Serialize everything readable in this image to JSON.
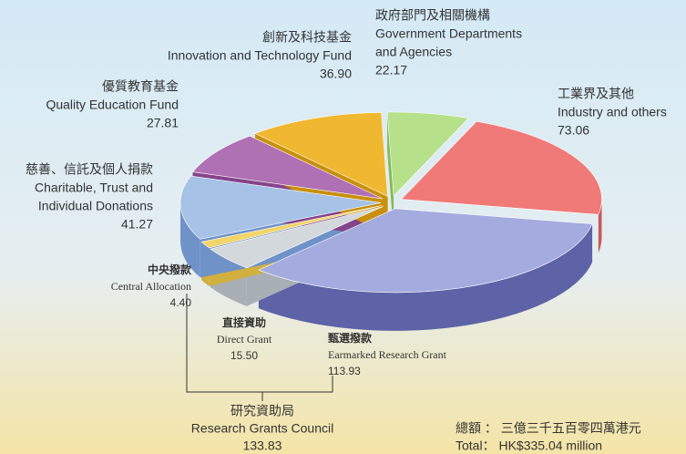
{
  "chart_data": {
    "type": "pie",
    "series": [
      {
        "label_zh": "工業界及其他",
        "label_en": [
          "Industry and others"
        ],
        "color": "#f07a78",
        "side": "#c85a5a"
      },
      {
        "label_zh": "甄選撥款",
        "label_en": [
          "Earmarked Research Grant"
        ],
        "color": "#a4abdf",
        "side": "#5d63a6"
      },
      {
        "label_zh": "直接資助",
        "label_en": [
          "Direct Grant"
        ],
        "color": "#d3d8dc",
        "side": "#a9b0b5"
      },
      {
        "label_zh": "中央撥款",
        "label_en": [
          "Central Allocation"
        ],
        "color": "#f2d56a",
        "side": "#d2b040"
      },
      {
        "label_zh": "慈善、信託及個人捐款",
        "label_en": [
          "Charitable, Trust and",
          "Individual Donations"
        ],
        "color": "#a6c2e6",
        "side": "#6f93c8"
      },
      {
        "label_zh": "優質教育基金",
        "label_en": [
          "Quality Education Fund"
        ],
        "color": "#b070b4",
        "side": "#84448a"
      },
      {
        "label_zh": "創新及科技基金",
        "label_en": [
          "Innovation and Technology Fund"
        ],
        "color": "#f0b830",
        "side": "#c8900c"
      },
      {
        "label_zh": "政府部門及相關機構",
        "label_en": [
          "Government Departments",
          "and Agencies"
        ],
        "color": "#b6e08a",
        "side": "#86b858"
      }
    ],
    "values": [
      73.06,
      113.93,
      15.5,
      4.4,
      41.27,
      27.81,
      36.9,
      22.17
    ],
    "value_labels": [
      "73.06",
      "113.93",
      "15.50",
      "4.40",
      "41.27",
      "27.81",
      "36.90",
      "22.17"
    ],
    "group": {
      "label_zh": "研究資助局",
      "label_en": "Research Grants Council",
      "value": 133.83,
      "value_label": "133.83"
    },
    "total_zh": "總額 ： 三億三千五百零四萬港元",
    "total_en": "Total： HK$335.04 million"
  }
}
